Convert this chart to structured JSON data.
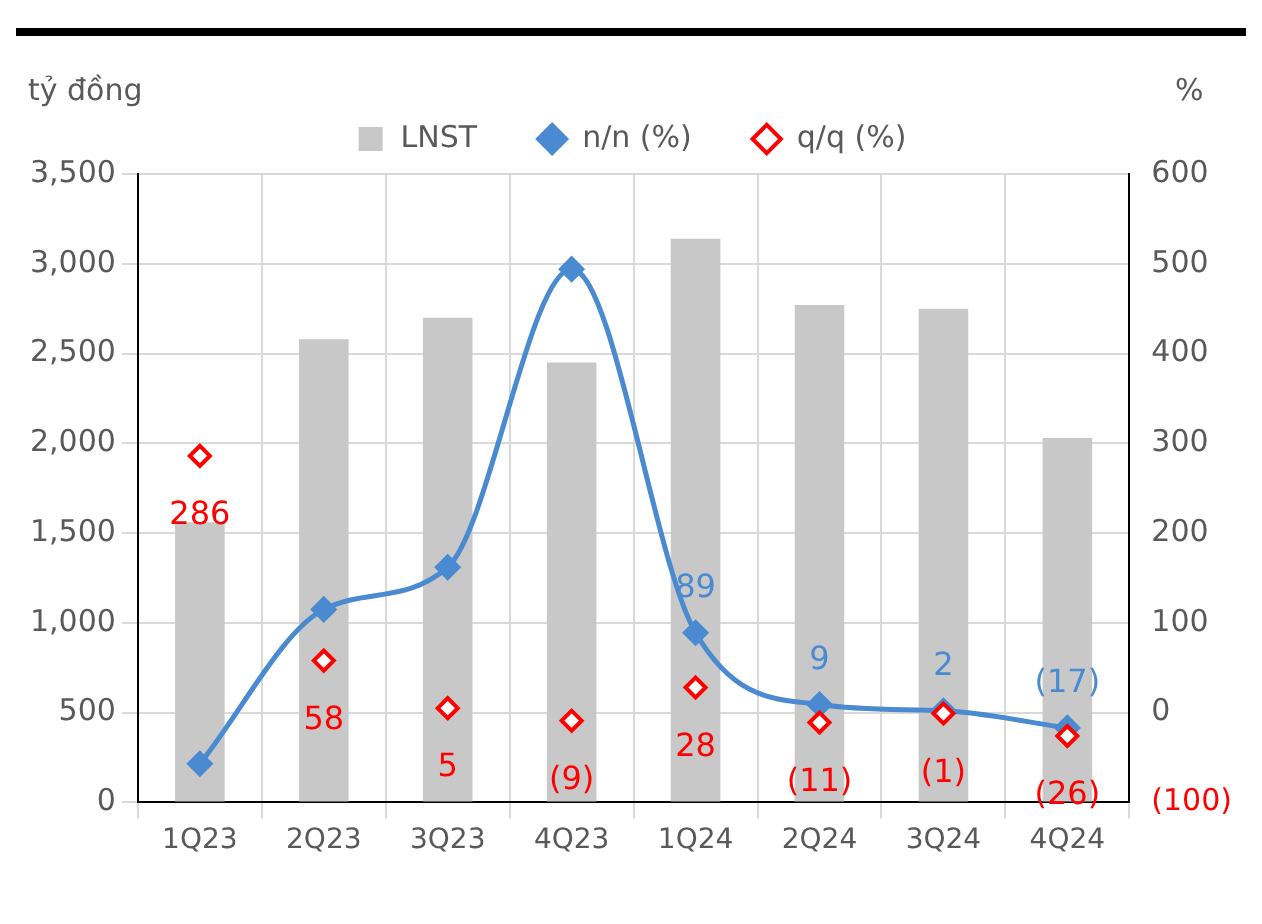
{
  "chart_data": {
    "type": "bar",
    "ylabel": "tỷ đồng",
    "y2label": "%",
    "categories": [
      "1Q23",
      "2Q23",
      "3Q23",
      "4Q23",
      "1Q24",
      "2Q24",
      "3Q24",
      "4Q24"
    ],
    "series": [
      {
        "name": "LNST",
        "color": "#c8c8c8",
        "values": [
          1560,
          2580,
          2700,
          2450,
          3140,
          2770,
          2750,
          2030
        ]
      },
      {
        "name": "n/n (%)",
        "type": "line",
        "axis": "y2",
        "color": "#4a8ad0",
        "marker": "diamond",
        "values": [
          -57,
          115,
          162,
          494,
          89,
          9,
          2,
          -17
        ],
        "value_labels": [
          null,
          null,
          null,
          null,
          "89",
          "9",
          "2",
          "(17)"
        ]
      },
      {
        "name": "q/q (%)",
        "type": "scatter",
        "axis": "y2",
        "color": "#ff0000",
        "marker": "diamond",
        "values": [
          286,
          58,
          5,
          -9,
          28,
          -11,
          -1,
          -26
        ],
        "value_labels": [
          "286",
          "58",
          "5",
          "(9)",
          "28",
          "(11)",
          "(1)",
          "(26)"
        ]
      }
    ],
    "ylim": [
      0,
      3500
    ],
    "yticks": [
      0,
      {
        "value": 500,
        "label": "500"
      },
      {
        "value": 1000,
        "label": "1,000"
      },
      {
        "value": 1500,
        "label": "1,500"
      },
      {
        "value": 2000,
        "label": "2,000"
      },
      {
        "value": 2500,
        "label": "2,500"
      },
      {
        "value": 3000,
        "label": "3,000"
      },
      {
        "value": 3500,
        "label": "3,500"
      }
    ],
    "y2lim": [
      -100,
      600
    ],
    "y2ticks": [
      {
        "value": -100,
        "label": "(100)"
      },
      0,
      100,
      200,
      300,
      400,
      500,
      600
    ],
    "grid": true,
    "legend": "top"
  }
}
